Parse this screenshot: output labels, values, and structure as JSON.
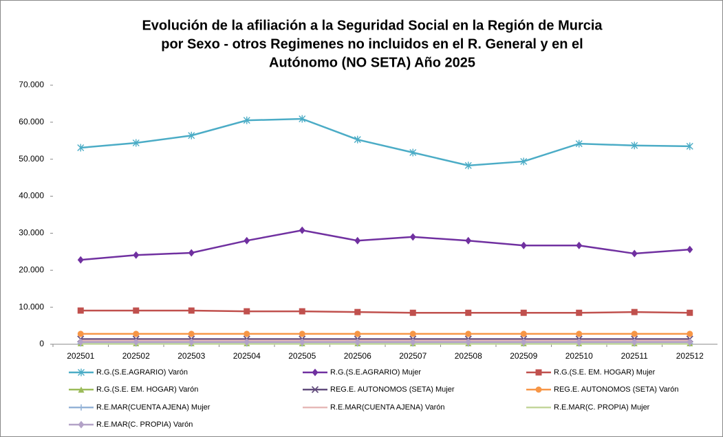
{
  "chart_data": {
    "type": "line",
    "title": [
      "Evolución de la afiliación a la Seguridad Social en la Región de Murcia",
      "por Sexo - otros Regimenes no incluidos en el R. General y en el",
      "Autónomo (NO SETA) Año 2025"
    ],
    "categories": [
      "202501",
      "202502",
      "202503",
      "202504",
      "202505",
      "202506",
      "202507",
      "202508",
      "202509",
      "202510",
      "202511",
      "202512"
    ],
    "ylim": [
      0,
      70000
    ],
    "yticks": [
      0,
      {
        "value": 10000,
        "label": "10.000"
      },
      {
        "value": 20000,
        "label": "20.000"
      },
      {
        "value": 30000,
        "label": "30.000"
      },
      {
        "value": 40000,
        "label": "40.000"
      },
      {
        "value": 50000,
        "label": "50.000"
      },
      {
        "value": 60000,
        "label": "60.000"
      },
      {
        "value": 70000,
        "label": "70.000"
      }
    ],
    "series": [
      {
        "name": "R.G.(S.E.AGRARIO) Varón",
        "color": "#4bacc6",
        "marker": "star",
        "values": [
          53100,
          54400,
          56400,
          60500,
          60900,
          55300,
          51800,
          48300,
          49400,
          54200,
          53700,
          53500
        ]
      },
      {
        "name": "R.G.(S.E.AGRARIO) Mujer",
        "color": "#7030a0",
        "marker": "diamond",
        "values": [
          22800,
          24100,
          24700,
          28000,
          30800,
          28000,
          29000,
          28000,
          26700,
          26700,
          24500,
          25600
        ]
      },
      {
        "name": "R.G.(S.E. EM. HOGAR) Mujer",
        "color": "#c0504d",
        "marker": "square",
        "values": [
          9100,
          9100,
          9100,
          8900,
          8900,
          8700,
          8500,
          8500,
          8500,
          8500,
          8700,
          8500
        ]
      },
      {
        "name": "R.G.(S.E. EM. HOGAR) Varón",
        "color": "#9bbb59",
        "marker": "triangle",
        "values": [
          300,
          300,
          300,
          300,
          300,
          300,
          300,
          300,
          300,
          300,
          300,
          300
        ]
      },
      {
        "name": "REG.E. AUTONOMOS (SETA) Mujer",
        "color": "#604a7b",
        "marker": "x",
        "values": [
          1400,
          1400,
          1400,
          1400,
          1400,
          1400,
          1400,
          1400,
          1400,
          1400,
          1400,
          1400
        ]
      },
      {
        "name": "REG.E. AUTONOMOS (SETA) Varón",
        "color": "#f79646",
        "marker": "circle",
        "values": [
          2800,
          2800,
          2800,
          2800,
          2800,
          2800,
          2800,
          2800,
          2800,
          2800,
          2800,
          2800
        ]
      },
      {
        "name": "R.E.MAR(CUENTA AJENA) Mujer",
        "color": "#95b3d7",
        "marker": "plus",
        "values": [
          200,
          200,
          200,
          200,
          200,
          200,
          200,
          200,
          200,
          200,
          200,
          200
        ]
      },
      {
        "name": "R.E.MAR(CUENTA AJENA) Varón",
        "color": "#e6b9b8",
        "marker": "none",
        "values": [
          1000,
          1000,
          1000,
          1000,
          1000,
          1000,
          1000,
          1000,
          1000,
          1000,
          1000,
          1000
        ]
      },
      {
        "name": "R.E.MAR(C. PROPIA) Mujer",
        "color": "#c3d69b",
        "marker": "none",
        "values": [
          100,
          100,
          100,
          100,
          100,
          100,
          100,
          100,
          100,
          100,
          100,
          100
        ]
      },
      {
        "name": "R.E.MAR(C. PROPIA) Varón",
        "color": "#b3a2c7",
        "marker": "diamond",
        "values": [
          600,
          600,
          600,
          600,
          600,
          600,
          600,
          600,
          600,
          600,
          600,
          600
        ]
      }
    ]
  }
}
